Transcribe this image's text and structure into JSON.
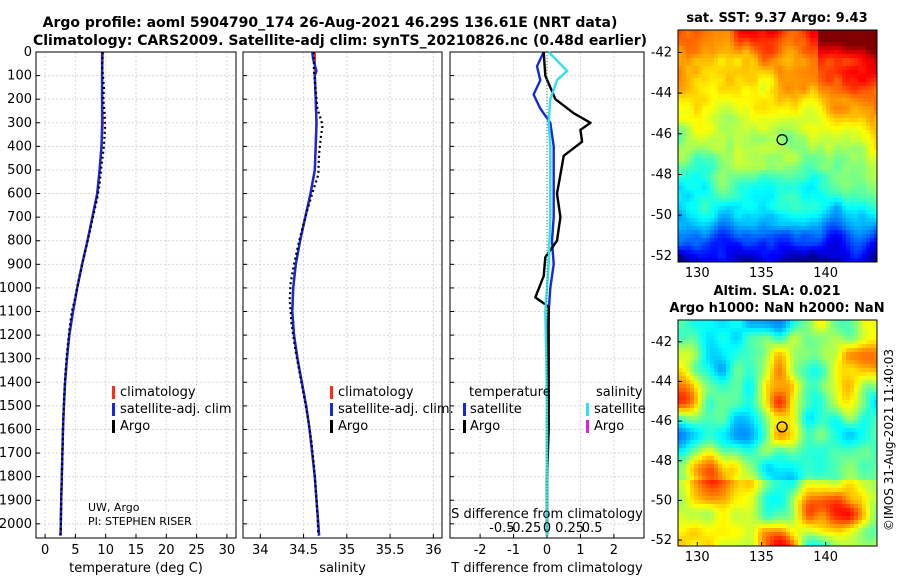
{
  "title": {
    "line1": "Argo profile: aoml 5904790_174 26-Aug-2021 46.29S 136.61E (NRT data)",
    "line2": "Climatology: CARS2009. Satellite-adj clim: synTS_20210826.nc (0.48d earlier)"
  },
  "colors": {
    "climatology": "#ff2b12",
    "satellite_adj": "#1428e0",
    "argo": "#000000",
    "t_sat": "#1428e0",
    "s_sat": "#2fe0f0",
    "s_argo": "#e020d8"
  },
  "credit": {
    "line1": "UW, Argo",
    "line2": "PI: STEPHEN RISER"
  },
  "watermark": "©IMOS 31-Aug-2021 11:40:03",
  "chart_data": [
    {
      "type": "line",
      "title": "",
      "xlabel": "temperature (deg C)",
      "xlim": [
        -1.5,
        31.5
      ],
      "ylim": [
        2060,
        0
      ],
      "xticks": [
        0,
        5,
        10,
        15,
        20,
        25,
        30
      ],
      "yticks": [
        0,
        100,
        200,
        300,
        400,
        500,
        600,
        700,
        800,
        900,
        1000,
        1100,
        1200,
        1300,
        1400,
        1500,
        1600,
        1700,
        1800,
        1900,
        2000
      ],
      "legend": [
        "climatology",
        "satellite-adj. clim",
        "Argo"
      ],
      "series": [
        {
          "name": "climatology",
          "color": "#ff2b12",
          "dash": "",
          "points": [
            [
              9.5,
              0
            ],
            [
              9.4,
              100
            ],
            [
              9.4,
              200
            ],
            [
              9.5,
              300
            ],
            [
              9.3,
              400
            ],
            [
              9.0,
              500
            ],
            [
              8.6,
              600
            ],
            [
              7.8,
              700
            ],
            [
              7.0,
              800
            ],
            [
              6.1,
              900
            ],
            [
              5.3,
              1000
            ],
            [
              4.6,
              1100
            ],
            [
              4.0,
              1200
            ],
            [
              3.6,
              1300
            ],
            [
              3.3,
              1400
            ],
            [
              3.1,
              1500
            ],
            [
              2.95,
              1600
            ],
            [
              2.85,
              1700
            ],
            [
              2.75,
              1800
            ],
            [
              2.65,
              1900
            ],
            [
              2.6,
              2000
            ],
            [
              2.55,
              2050
            ]
          ]
        },
        {
          "name": "satellite-adj. clim",
          "color": "#1428e0",
          "dash": "",
          "points": [
            [
              9.4,
              0
            ],
            [
              9.4,
              100
            ],
            [
              9.4,
              200
            ],
            [
              9.4,
              300
            ],
            [
              9.3,
              400
            ],
            [
              9.0,
              500
            ],
            [
              8.6,
              600
            ],
            [
              7.8,
              700
            ],
            [
              7.0,
              800
            ],
            [
              6.1,
              900
            ],
            [
              5.3,
              1000
            ],
            [
              4.6,
              1100
            ],
            [
              4.0,
              1200
            ],
            [
              3.6,
              1300
            ],
            [
              3.3,
              1400
            ],
            [
              3.1,
              1500
            ],
            [
              2.95,
              1600
            ],
            [
              2.85,
              1700
            ],
            [
              2.75,
              1800
            ],
            [
              2.65,
              1900
            ],
            [
              2.6,
              2000
            ],
            [
              2.55,
              2050
            ]
          ]
        },
        {
          "name": "Argo",
          "color": "#000000",
          "dash": "2,3",
          "points": [
            [
              9.5,
              0
            ],
            [
              9.4,
              60
            ],
            [
              9.7,
              150
            ],
            [
              9.6,
              200
            ],
            [
              9.8,
              260
            ],
            [
              9.9,
              320
            ],
            [
              9.7,
              400
            ],
            [
              9.3,
              480
            ],
            [
              9.0,
              560
            ],
            [
              8.6,
              620
            ],
            [
              7.9,
              700
            ],
            [
              7.2,
              780
            ],
            [
              6.3,
              880
            ],
            [
              5.6,
              960
            ],
            [
              4.9,
              1050
            ],
            [
              4.4,
              1100
            ],
            [
              4.0,
              1180
            ],
            [
              3.6,
              1280
            ],
            [
              3.3,
              1380
            ],
            [
              3.1,
              1480
            ],
            [
              2.95,
              1580
            ],
            [
              2.85,
              1700
            ],
            [
              2.75,
              1800
            ],
            [
              2.65,
              1900
            ],
            [
              2.6,
              2000
            ],
            [
              2.55,
              2050
            ]
          ]
        }
      ]
    },
    {
      "type": "line",
      "title": "",
      "xlabel": "salinity",
      "xlim": [
        33.8,
        36.1
      ],
      "ylim": [
        2060,
        0
      ],
      "xticks": [
        34,
        34.5,
        35,
        35.5,
        36
      ],
      "yticks": [
        0,
        100,
        200,
        300,
        400,
        500,
        600,
        700,
        800,
        900,
        1000,
        1100,
        1200,
        1300,
        1400,
        1500,
        1600,
        1700,
        1800,
        1900,
        2000
      ],
      "legend": [
        "climatology",
        "satellite-adj. clim.",
        "Argo"
      ],
      "series": [
        {
          "name": "climatology",
          "color": "#ff2b12",
          "dash": "",
          "points": [
            [
              34.63,
              0
            ],
            [
              34.63,
              100
            ],
            [
              34.64,
              200
            ],
            [
              34.65,
              300
            ],
            [
              34.64,
              400
            ],
            [
              34.63,
              500
            ],
            [
              34.58,
              600
            ],
            [
              34.52,
              700
            ],
            [
              34.46,
              800
            ],
            [
              34.41,
              900
            ],
            [
              34.38,
              1000
            ],
            [
              34.37,
              1100
            ],
            [
              34.39,
              1200
            ],
            [
              34.43,
              1300
            ],
            [
              34.48,
              1400
            ],
            [
              34.53,
              1500
            ],
            [
              34.57,
              1600
            ],
            [
              34.6,
              1700
            ],
            [
              34.63,
              1800
            ],
            [
              34.65,
              1900
            ],
            [
              34.67,
              2000
            ],
            [
              34.68,
              2050
            ]
          ]
        },
        {
          "name": "satellite-adj. clim.",
          "color": "#1428e0",
          "dash": "",
          "points": [
            [
              34.6,
              0
            ],
            [
              34.61,
              30
            ],
            [
              34.65,
              80
            ],
            [
              34.63,
              100
            ],
            [
              34.64,
              200
            ],
            [
              34.65,
              300
            ],
            [
              34.64,
              400
            ],
            [
              34.63,
              500
            ],
            [
              34.58,
              600
            ],
            [
              34.52,
              700
            ],
            [
              34.46,
              800
            ],
            [
              34.41,
              900
            ],
            [
              34.38,
              1000
            ],
            [
              34.37,
              1100
            ],
            [
              34.39,
              1200
            ],
            [
              34.43,
              1300
            ],
            [
              34.48,
              1400
            ],
            [
              34.53,
              1500
            ],
            [
              34.57,
              1600
            ],
            [
              34.6,
              1700
            ],
            [
              34.63,
              1800
            ],
            [
              34.65,
              1900
            ],
            [
              34.67,
              2000
            ],
            [
              34.68,
              2050
            ]
          ]
        },
        {
          "name": "Argo",
          "color": "#000000",
          "dash": "2,3",
          "points": [
            [
              34.62,
              0
            ],
            [
              34.62,
              80
            ],
            [
              34.64,
              160
            ],
            [
              34.66,
              240
            ],
            [
              34.72,
              310
            ],
            [
              34.7,
              360
            ],
            [
              34.68,
              430
            ],
            [
              34.67,
              520
            ],
            [
              34.6,
              600
            ],
            [
              34.52,
              700
            ],
            [
              34.45,
              800
            ],
            [
              34.39,
              900
            ],
            [
              34.35,
              980
            ],
            [
              34.34,
              1050
            ],
            [
              34.36,
              1150
            ],
            [
              34.4,
              1250
            ],
            [
              34.45,
              1350
            ],
            [
              34.5,
              1450
            ],
            [
              34.55,
              1550
            ],
            [
              34.59,
              1650
            ],
            [
              34.62,
              1750
            ],
            [
              34.64,
              1850
            ],
            [
              34.66,
              1950
            ],
            [
              34.67,
              2050
            ]
          ]
        }
      ]
    },
    {
      "type": "line",
      "title": "",
      "xlabel": "T difference from climatology",
      "xlabel2": "S difference from climatology",
      "xlim": [
        -2.9,
        2.9
      ],
      "ylim": [
        2060,
        0
      ],
      "xticks": [
        -2,
        -1,
        0,
        1,
        2
      ],
      "xticks_s": [
        -0.5,
        -0.25,
        0,
        0.25,
        0.5
      ],
      "xtick_s_labels": [
        "-0.5",
        "-0.25",
        "0",
        "0.25",
        "0.5"
      ],
      "yticks": [
        0,
        100,
        200,
        300,
        400,
        500,
        600,
        700,
        800,
        900,
        1000,
        1100,
        1200,
        1300,
        1400,
        1500,
        1600,
        1700,
        1800,
        1900,
        2000
      ],
      "legend_groups": [
        {
          "title": "temperature",
          "items": [
            "satellite",
            "Argo"
          ]
        },
        {
          "title": "salinity",
          "items": [
            "satellite",
            "Argo"
          ]
        }
      ],
      "series": [
        {
          "name": "T satellite",
          "color": "#1428e0",
          "dash": "",
          "points": [
            [
              -0.1,
              0
            ],
            [
              -0.3,
              60
            ],
            [
              -0.2,
              120
            ],
            [
              -0.4,
              180
            ],
            [
              -0.2,
              240
            ],
            [
              0.1,
              300
            ],
            [
              0.2,
              400
            ],
            [
              0.2,
              500
            ],
            [
              0.2,
              600
            ],
            [
              0.2,
              700
            ],
            [
              0.15,
              800
            ],
            [
              0.2,
              900
            ],
            [
              0.1,
              1000
            ],
            [
              0.05,
              1100
            ],
            [
              0.0,
              1200
            ],
            [
              0.0,
              1400
            ],
            [
              0.0,
              1600
            ],
            [
              0.0,
              1800
            ],
            [
              0.0,
              2050
            ]
          ]
        },
        {
          "name": "T Argo",
          "color": "#000000",
          "dash": "",
          "points": [
            [
              -0.1,
              0
            ],
            [
              -0.05,
              100
            ],
            [
              0.25,
              200
            ],
            [
              0.8,
              260
            ],
            [
              1.3,
              300
            ],
            [
              1.0,
              330
            ],
            [
              1.05,
              380
            ],
            [
              0.5,
              440
            ],
            [
              0.4,
              520
            ],
            [
              0.3,
              600
            ],
            [
              0.4,
              700
            ],
            [
              0.3,
              800
            ],
            [
              -0.05,
              870
            ],
            [
              -0.1,
              950
            ],
            [
              -0.35,
              1040
            ],
            [
              0.05,
              1080
            ],
            [
              0.05,
              1200
            ],
            [
              0.05,
              1400
            ],
            [
              0.05,
              1600
            ],
            [
              0.0,
              1800
            ],
            [
              0.0,
              2050
            ]
          ]
        },
        {
          "name": "S satellite",
          "color": "#2fe0f0",
          "dash": "",
          "points": [
            [
              0.05,
              0
            ],
            [
              0.6,
              80
            ],
            [
              0.3,
              120
            ],
            [
              0.1,
              200
            ],
            [
              0.05,
              300
            ],
            [
              0.1,
              400
            ],
            [
              0.1,
              500
            ],
            [
              0.1,
              700
            ],
            [
              0.05,
              900
            ],
            [
              0.0,
              1000
            ],
            [
              -0.05,
              1100
            ],
            [
              -0.02,
              1300
            ],
            [
              0.0,
              1600
            ],
            [
              0.0,
              2050
            ]
          ]
        }
      ]
    },
    {
      "type": "heatmap",
      "title": "sat. SST: 9.37 Argo: 9.43",
      "xlim": [
        128.5,
        144
      ],
      "ylim": [
        -52.3,
        -40.9
      ],
      "xticks": [
        130,
        135,
        140
      ],
      "yticks": [
        -42,
        -44,
        -46,
        -48,
        -50,
        -52
      ],
      "marker": {
        "lon": 136.61,
        "lat": -46.29
      }
    },
    {
      "type": "heatmap",
      "title_line1": "Altim. SLA: 0.021",
      "title_line2": "Argo h1000: NaN h2000: NaN",
      "xlim": [
        128.5,
        144
      ],
      "ylim": [
        -52.3,
        -40.9
      ],
      "xticks": [
        130,
        135,
        140
      ],
      "yticks": [
        -42,
        -44,
        -46,
        -48,
        -50,
        -52
      ],
      "marker": {
        "lon": 136.61,
        "lat": -46.29
      }
    }
  ]
}
